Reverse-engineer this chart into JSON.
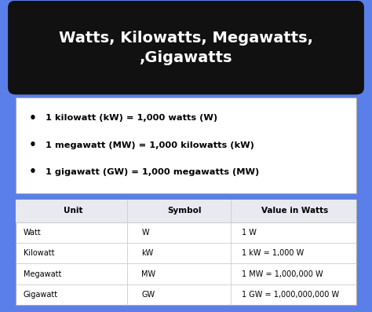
{
  "background_color": "#5b7fe8",
  "title": "Watts, Kilowatts, Megawatts,\n,Gigawatts",
  "title_bg": "#111111",
  "title_text_color": "#ffffff",
  "bullets": [
    "1 kilowatt (kW) = 1,000 watts (W)",
    "1 megawatt (MW) = 1,000 kilowatts (kW)",
    "1 gigawatt (GW) = 1,000 megawatts (MW)"
  ],
  "bullet_bg": "#ffffff",
  "bullet_text_color": "#000000",
  "table_bg": "#ffffff",
  "table_header_bg": "#e8eaf0",
  "table_headers": [
    "Unit",
    "Symbol",
    "Value in Watts"
  ],
  "table_rows": [
    [
      "Watt",
      "W",
      "1 W"
    ],
    [
      "Kilowatt",
      "kW",
      "1 kW = 1,000 W"
    ],
    [
      "Megawatt",
      "MW",
      "1 MW = 1,000,000 W"
    ],
    [
      "Gigawatt",
      "GW",
      "1 GW = 1,000,000,000 W"
    ]
  ],
  "table_line_color": "#cccccc"
}
